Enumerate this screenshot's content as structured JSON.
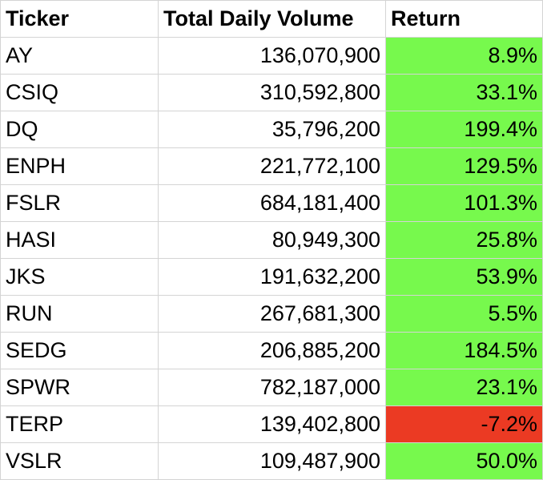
{
  "table": {
    "headers": [
      "Ticker",
      "Total Daily Volume",
      "Return"
    ],
    "colors": {
      "positive": "#77f94d",
      "negative": "#eb3a23"
    },
    "rows": [
      {
        "ticker": "AY",
        "volume": "136,070,900",
        "return": "8.9%",
        "sign": "pos"
      },
      {
        "ticker": "CSIQ",
        "volume": "310,592,800",
        "return": "33.1%",
        "sign": "pos"
      },
      {
        "ticker": "DQ",
        "volume": "35,796,200",
        "return": "199.4%",
        "sign": "pos"
      },
      {
        "ticker": "ENPH",
        "volume": "221,772,100",
        "return": "129.5%",
        "sign": "pos"
      },
      {
        "ticker": "FSLR",
        "volume": "684,181,400",
        "return": "101.3%",
        "sign": "pos"
      },
      {
        "ticker": "HASI",
        "volume": "80,949,300",
        "return": "25.8%",
        "sign": "pos"
      },
      {
        "ticker": "JKS",
        "volume": "191,632,200",
        "return": "53.9%",
        "sign": "pos"
      },
      {
        "ticker": "RUN",
        "volume": "267,681,300",
        "return": "5.5%",
        "sign": "pos"
      },
      {
        "ticker": "SEDG",
        "volume": "206,885,200",
        "return": "184.5%",
        "sign": "pos"
      },
      {
        "ticker": "SPWR",
        "volume": "782,187,000",
        "return": "23.1%",
        "sign": "pos"
      },
      {
        "ticker": "TERP",
        "volume": "139,402,800",
        "return": "-7.2%",
        "sign": "neg"
      },
      {
        "ticker": "VSLR",
        "volume": "109,487,900",
        "return": "50.0%",
        "sign": "pos"
      }
    ]
  }
}
